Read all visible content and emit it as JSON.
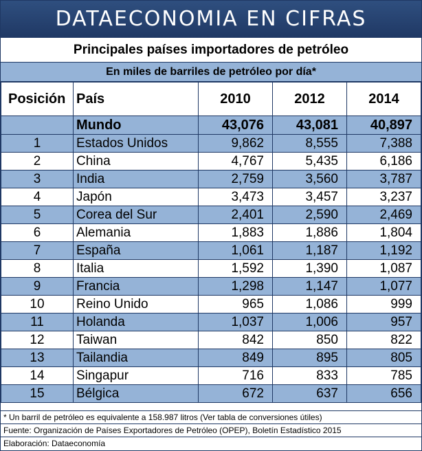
{
  "banner": "DATAECONOMIA EN CIFRAS",
  "title": "Principales países importadores de petróleo",
  "subtitle": "En miles de barriles de petróleo por día*",
  "headers": [
    "Posición",
    "País",
    "2010",
    "2012",
    "2014"
  ],
  "world": {
    "pais": "Mundo",
    "v2010": "43,076",
    "v2012": "43,081",
    "v2014": "40,897"
  },
  "rows": [
    {
      "pos": "1",
      "pais": "Estados Unidos",
      "v2010": "9,862",
      "v2012": "8,555",
      "v2014": "7,388"
    },
    {
      "pos": "2",
      "pais": "China",
      "v2010": "4,767",
      "v2012": "5,435",
      "v2014": "6,186"
    },
    {
      "pos": "3",
      "pais": "India",
      "v2010": "2,759",
      "v2012": "3,560",
      "v2014": "3,787"
    },
    {
      "pos": "4",
      "pais": "Japón",
      "v2010": "3,473",
      "v2012": "3,457",
      "v2014": "3,237"
    },
    {
      "pos": "5",
      "pais": "Corea del Sur",
      "v2010": "2,401",
      "v2012": "2,590",
      "v2014": "2,469"
    },
    {
      "pos": "6",
      "pais": "Alemania",
      "v2010": "1,883",
      "v2012": "1,886",
      "v2014": "1,804"
    },
    {
      "pos": "7",
      "pais": "España",
      "v2010": "1,061",
      "v2012": "1,187",
      "v2014": "1,192"
    },
    {
      "pos": "8",
      "pais": "Italia",
      "v2010": "1,592",
      "v2012": "1,390",
      "v2014": "1,087"
    },
    {
      "pos": "9",
      "pais": "Francia",
      "v2010": "1,298",
      "v2012": "1,147",
      "v2014": "1,077"
    },
    {
      "pos": "10",
      "pais": "Reino Unido",
      "v2010": "965",
      "v2012": "1,086",
      "v2014": "999"
    },
    {
      "pos": "11",
      "pais": "Holanda",
      "v2010": "1,037",
      "v2012": "1,006",
      "v2014": "957"
    },
    {
      "pos": "12",
      "pais": "Taiwan",
      "v2010": "842",
      "v2012": "850",
      "v2014": "822"
    },
    {
      "pos": "13",
      "pais": "Tailandia",
      "v2010": "849",
      "v2012": "895",
      "v2014": "805"
    },
    {
      "pos": "14",
      "pais": "Singapur",
      "v2010": "716",
      "v2012": "833",
      "v2014": "785"
    },
    {
      "pos": "15",
      "pais": "Bélgica",
      "v2010": "672",
      "v2012": "637",
      "v2014": "656"
    }
  ],
  "notes": {
    "footnote": "* Un barril de petróleo es equivalente a 158.987 litros (Ver tabla de conversiones útiles)",
    "source": "Fuente: Organización de Países Exportadores de Petróleo (OPEP), Boletín Estadístico 2015",
    "credit": "Elaboración: Dataeconomía"
  },
  "colors": {
    "banner": "#1f3864",
    "band": "#95b3d7",
    "border": "#1f3864"
  }
}
